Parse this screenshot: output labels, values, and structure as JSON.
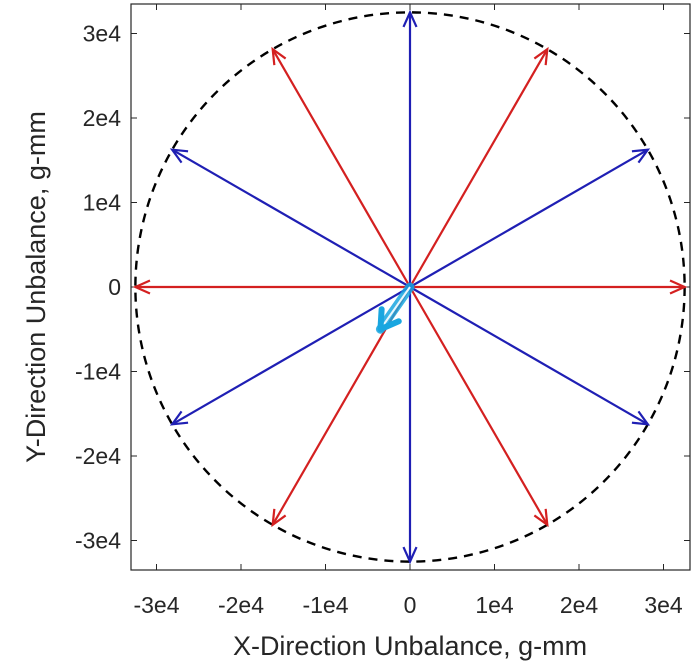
{
  "chart_data": {
    "type": "vector-polar",
    "xlabel": "X-Direction Unbalance, g-mm",
    "ylabel": "Y-Direction Unbalance, g-mm",
    "xlim": [
      -33000,
      33000
    ],
    "ylim": [
      -33000,
      33000
    ],
    "x_ticks": [
      -30000,
      -20000,
      -10000,
      0,
      10000,
      20000,
      30000
    ],
    "x_tick_labels": [
      "-3e4",
      "-2e4",
      "-1e4",
      "0",
      "1e4",
      "2e4",
      "3e4"
    ],
    "y_ticks": [
      -30000,
      -20000,
      -10000,
      0,
      10000,
      20000,
      30000
    ],
    "y_tick_labels": [
      "-3e4",
      "-2e4",
      "-1e4",
      "0",
      "1e4",
      "2e4",
      "3e4"
    ],
    "grid": false,
    "boundary_circle": {
      "radius": 32500,
      "style": "dashed",
      "color": "#000000"
    },
    "series": [
      {
        "color": "#d42020",
        "vectors": [
          {
            "x": 32500,
            "y": 0
          },
          {
            "x": 16250,
            "y": 28146
          },
          {
            "x": -16250,
            "y": 28146
          },
          {
            "x": -32500,
            "y": 0
          },
          {
            "x": -16250,
            "y": -28146
          },
          {
            "x": 16250,
            "y": -28146
          }
        ]
      },
      {
        "color": "#1f1fb4",
        "vectors": [
          {
            "x": 28146,
            "y": 16250
          },
          {
            "x": 0,
            "y": 32500
          },
          {
            "x": -28146,
            "y": 16250
          },
          {
            "x": -28146,
            "y": -16250
          },
          {
            "x": 0,
            "y": -32500
          },
          {
            "x": 28146,
            "y": -16250
          }
        ]
      },
      {
        "color": "#19a6e0",
        "style": "highlight",
        "vectors": [
          {
            "x": -3500,
            "y": -5000
          }
        ]
      }
    ]
  }
}
